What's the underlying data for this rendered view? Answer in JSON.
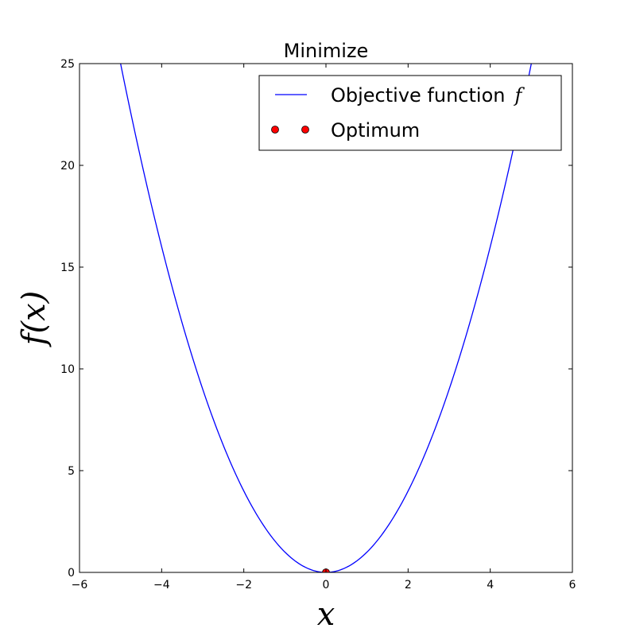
{
  "chart_data": {
    "type": "line",
    "title": "Minimize",
    "xlabel": "x",
    "ylabel": "f(x)",
    "xlim": [
      -6,
      6
    ],
    "ylim": [
      0,
      25
    ],
    "xticks": [
      -6,
      -4,
      -2,
      0,
      2,
      4,
      6
    ],
    "xtick_labels": [
      "−6",
      "−4",
      "−2",
      "0",
      "2",
      "4",
      "6"
    ],
    "yticks": [
      0,
      5,
      10,
      15,
      20,
      25
    ],
    "ytick_labels": [
      "0",
      "5",
      "10",
      "15",
      "20",
      "25"
    ],
    "grid": false,
    "legend_position": "top-right",
    "series": [
      {
        "name": "Objective function",
        "name_math": "f",
        "kind": "line",
        "color": "#0000ff",
        "function": "x^2",
        "x": [
          -5,
          -4.5,
          -4,
          -3.5,
          -3,
          -2.5,
          -2,
          -1.5,
          -1,
          -0.5,
          0,
          0.5,
          1,
          1.5,
          2,
          2.5,
          3,
          3.5,
          4,
          4.5,
          5
        ],
        "y": [
          25,
          20.25,
          16,
          12.25,
          9,
          6.25,
          4,
          2.25,
          1,
          0.25,
          0,
          0.25,
          1,
          2.25,
          4,
          6.25,
          9,
          12.25,
          16,
          20.25,
          25
        ]
      },
      {
        "name": "Optimum",
        "kind": "marker",
        "color": "#ff0000",
        "x": [
          0
        ],
        "y": [
          0
        ]
      }
    ]
  }
}
